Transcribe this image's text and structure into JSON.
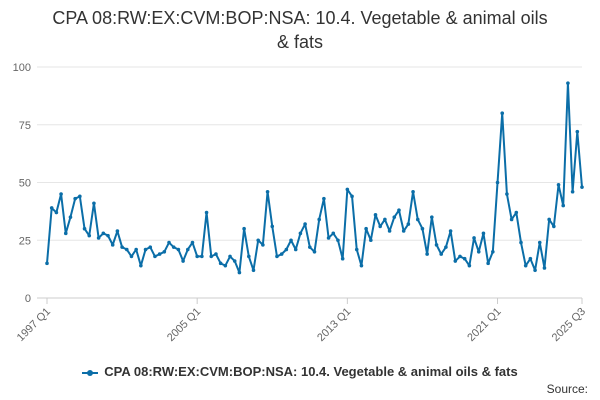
{
  "title_line1": "CPA 08:RW:EX:CVM:BOP:NSA: 10.4. Vegetable & animal oils",
  "title_line2": "& fats",
  "source_label": "Source:",
  "colors": {
    "series": "#0b6ea8",
    "grid": "#e6e6e6",
    "axis": "#cccccc",
    "text": "#666666"
  },
  "chart_data": {
    "type": "line",
    "title": "CPA 08:RW:EX:CVM:BOP:NSA: 10.4. Vegetable & animal oils & fats",
    "xlabel": "",
    "ylabel": "",
    "ylim": [
      0,
      100
    ],
    "yticks": [
      0,
      25,
      50,
      75,
      100
    ],
    "x_start": "1997 Q1",
    "x_end": "2025 Q3",
    "xtick_labels": [
      "1997 Q1",
      "2005 Q1",
      "2013 Q1",
      "2021 Q1",
      "2025 Q3"
    ],
    "grid": true,
    "legend_position": "bottom",
    "series": [
      {
        "name": "CPA 08:RW:EX:CVM:BOP:NSA: 10.4. Vegetable & animal oils & fats",
        "values": [
          15,
          39,
          37,
          45,
          28,
          35,
          43,
          44,
          30,
          27,
          41,
          26,
          28,
          27,
          23,
          29,
          22,
          21,
          18,
          21,
          14,
          21,
          22,
          18,
          19,
          20,
          24,
          22,
          21,
          16,
          21,
          24,
          18,
          18,
          37,
          18,
          19,
          15,
          14,
          18,
          16,
          11,
          30,
          18,
          12,
          25,
          23,
          46,
          31,
          18,
          19,
          21,
          25,
          21,
          28,
          32,
          22,
          20,
          34,
          43,
          26,
          28,
          25,
          17,
          47,
          44,
          21,
          14,
          30,
          25,
          36,
          31,
          34,
          29,
          35,
          38,
          29,
          32,
          46,
          34,
          30,
          19,
          35,
          23,
          19,
          22,
          29,
          16,
          18,
          17,
          14,
          26,
          20,
          28,
          15,
          20,
          50,
          80,
          45,
          34,
          37,
          24,
          14,
          17,
          12,
          24,
          13,
          34,
          31,
          49,
          40,
          93,
          46,
          72,
          48
        ]
      }
    ]
  }
}
